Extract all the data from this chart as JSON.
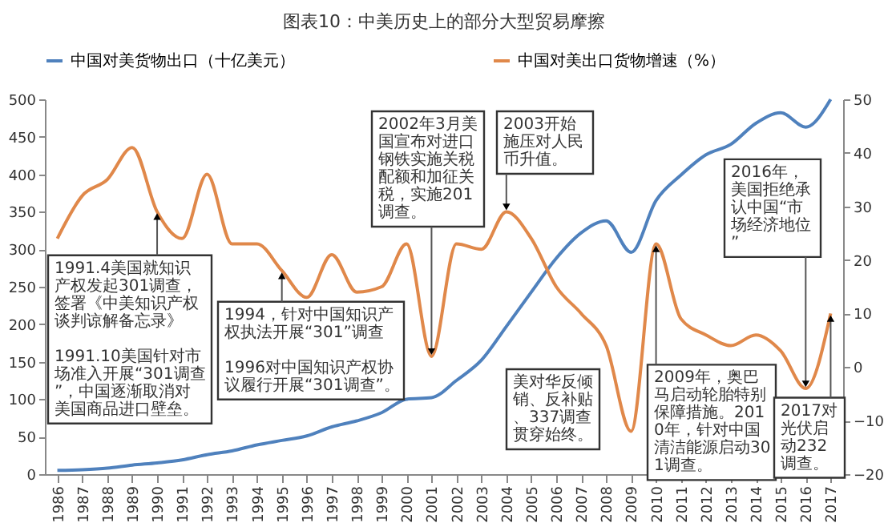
{
  "chart_data": {
    "type": "line",
    "title": "图表10：中美历史上的部分大型贸易摩擦",
    "categories": [
      "1986",
      "1987",
      "1988",
      "1989",
      "1990",
      "1991",
      "1992",
      "1993",
      "1994",
      "1995",
      "1996",
      "1997",
      "1998",
      "1999",
      "2000",
      "2001",
      "2002",
      "2003",
      "2004",
      "2005",
      "2006",
      "2007",
      "2008",
      "2009",
      "2010",
      "2011",
      "2012",
      "2013",
      "2014",
      "2015",
      "2016",
      "2017"
    ],
    "series": [
      {
        "name": "中国对美货物出口（十亿美元）",
        "color": "#4f81bd",
        "values": [
          5,
          6,
          8,
          12,
          15,
          19,
          26,
          31,
          39,
          45,
          51,
          63,
          71,
          82,
          100,
          102,
          125,
          152,
          197,
          243,
          288,
          322,
          338,
          296,
          365,
          399,
          426,
          440,
          468,
          482,
          463,
          500
        ]
      },
      {
        "name": "中国对美出口货物增速（%）",
        "color": "#e0884a",
        "axis": "y2",
        "values": [
          24,
          32,
          35,
          41,
          29,
          24,
          36,
          23,
          23,
          18,
          13,
          21,
          14,
          15,
          23,
          2,
          23,
          22,
          29,
          24,
          15,
          10,
          4,
          -12,
          23,
          9,
          6,
          4,
          6,
          3,
          -4,
          10
        ]
      }
    ],
    "ylim": [
      0,
      500
    ],
    "yticks": [
      0,
      50,
      100,
      150,
      200,
      250,
      300,
      350,
      400,
      450,
      500
    ],
    "y2lim": [
      -20,
      50
    ],
    "y2ticks": [
      -20,
      -10,
      0,
      10,
      20,
      30,
      40,
      50
    ],
    "legend": "top",
    "grid": false,
    "annotations": [
      {
        "text": "1991.4美国就知识产权发起301调查，签署《中美知识产权谈判谅解备忘录》\n1991.10美国针对市场准入开展“301调查”，中国逐渐取消对美国商品进口壁垒。",
        "x": "1990",
        "y": 350
      },
      {
        "text": "1994，针对中国知识产权执法开展“301”调查\n1996对中国知识产权协议履行开展“301调查”。",
        "x": "1995",
        "y": 271
      },
      {
        "text": "2002年3月美国宣布对进口钢铁实施关税配额和加征关税，实施201调查。",
        "x": "2001",
        "y": 157
      },
      {
        "text": "2003开始施压对人民币升值。",
        "x": "2004",
        "y": 350
      },
      "美对华反倾销、反补贴、337调查贯穿始终。",
      {
        "text": "2009年，奥巴马启动轮胎特别保障措施。2010年，针对中国清洁能源启动301调查。",
        "x": "2010",
        "y": 307
      },
      {
        "text": "2016年，美国拒绝承认中国“市场经济地位”",
        "x": "2016",
        "y": 114
      },
      {
        "text": "2017对光伏启动232调查。",
        "x": "2017",
        "y": 214
      }
    ]
  }
}
